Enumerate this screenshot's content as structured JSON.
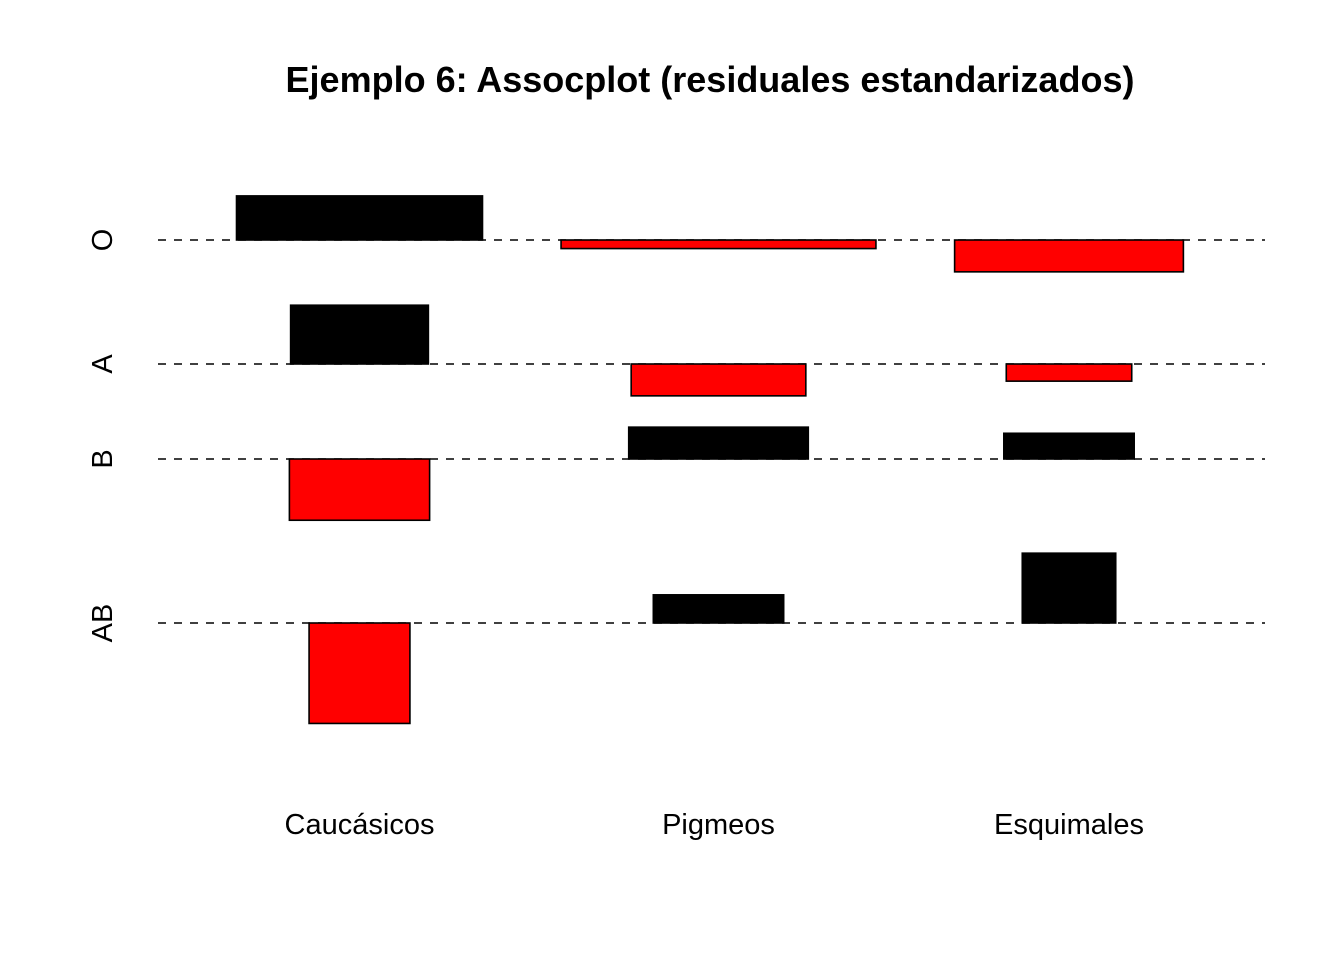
{
  "chart_data": {
    "type": "assocplot",
    "title": "Ejemplo 6: Assocplot (residuales estandarizados)",
    "columns": [
      "Caucásicos",
      "Pigmeos",
      "Esquimales"
    ],
    "rows": [
      "O",
      "A",
      "B",
      "AB"
    ],
    "colors": {
      "positive": "#000000",
      "negative": "#ff0000"
    },
    "cells": [
      {
        "row": "O",
        "col": "Caucásicos",
        "width": 1.0,
        "residual": 1.8
      },
      {
        "row": "O",
        "col": "Pigmeos",
        "width": 1.28,
        "residual": -0.35
      },
      {
        "row": "O",
        "col": "Esquimales",
        "width": 0.93,
        "residual": -1.3
      },
      {
        "row": "A",
        "col": "Caucásicos",
        "width": 0.56,
        "residual": 2.4
      },
      {
        "row": "A",
        "col": "Pigmeos",
        "width": 0.71,
        "residual": -1.3
      },
      {
        "row": "A",
        "col": "Esquimales",
        "width": 0.51,
        "residual": -0.7
      },
      {
        "row": "B",
        "col": "Caucásicos",
        "width": 0.57,
        "residual": -2.5
      },
      {
        "row": "B",
        "col": "Pigmeos",
        "width": 0.73,
        "residual": 1.3
      },
      {
        "row": "B",
        "col": "Esquimales",
        "width": 0.53,
        "residual": 1.05
      },
      {
        "row": "AB",
        "col": "Caucásicos",
        "width": 0.41,
        "residual": -4.1
      },
      {
        "row": "AB",
        "col": "Pigmeos",
        "width": 0.53,
        "residual": 1.15
      },
      {
        "row": "AB",
        "col": "Esquimales",
        "width": 0.38,
        "residual": 2.85
      }
    ]
  }
}
